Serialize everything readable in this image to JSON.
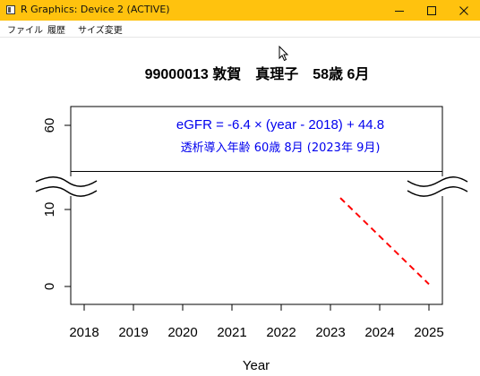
{
  "window": {
    "title": "R Graphics: Device 2 (ACTIVE)",
    "minimize_icon": "minimize-icon",
    "maximize_icon": "maximize-icon",
    "close_icon": "close-icon",
    "titlebar_color": "#ffc20e"
  },
  "menu": {
    "items": [
      {
        "label": "ファイル"
      },
      {
        "label": "履歴"
      },
      {
        "label": "サイズ変更"
      }
    ]
  },
  "plot": {
    "main_title": "99000013 敦賀　真理子　58歳 6月",
    "annotation_formula": "eGFR =  -6.4 × (year - 2018) +  44.8",
    "annotation_dialysis": "透析導入年齢 60歳 8月 (2023年  9月)",
    "annotation_color": "#0000ee",
    "line_color": "#ff0000"
  },
  "chart_data": {
    "type": "line",
    "xlabel": "Year",
    "ylabel": "",
    "x_ticks": [
      "2018",
      "2019",
      "2020",
      "2021",
      "2022",
      "2023",
      "2024",
      "2025"
    ],
    "y_ticks": [
      "0",
      "10",
      "60"
    ],
    "axis_break": "between 10 and 60 (wavy break marks on both sides)",
    "horizontal_reference": {
      "y": 15
    },
    "series": [
      {
        "style": "dashed",
        "color": "#ff0000",
        "x": [
          2023.2,
          2025.0
        ],
        "y": [
          11.5,
          0.3
        ]
      }
    ]
  }
}
